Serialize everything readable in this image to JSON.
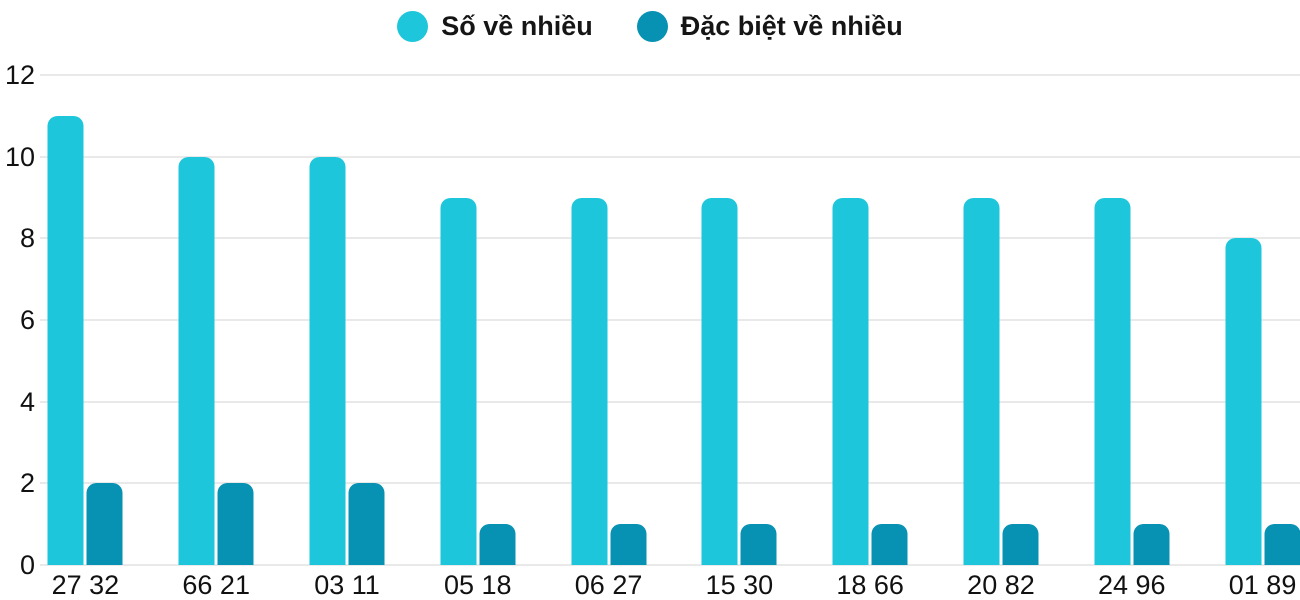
{
  "chart_data": {
    "type": "bar",
    "title": "",
    "categories": [
      "27 32",
      "66 21",
      "03 11",
      "05 18",
      "06 27",
      "15 30",
      "18 66",
      "20 82",
      "24 96",
      "01 89"
    ],
    "series": [
      {
        "name": "Số về nhiều",
        "color": "#1ec6dc",
        "values": [
          11,
          10,
          10,
          9,
          9,
          9,
          9,
          9,
          9,
          8
        ]
      },
      {
        "name": "Đặc biệt về nhiều",
        "color": "#0791b3",
        "values": [
          2,
          2,
          2,
          1,
          1,
          1,
          1,
          1,
          1,
          1
        ]
      }
    ],
    "ylim": [
      0,
      12
    ],
    "y_ticks": [
      0,
      2,
      4,
      6,
      8,
      10,
      12
    ],
    "grid": true,
    "legend_position": "top"
  },
  "colors": {
    "grid": "#e9e9e9",
    "text": "#111111",
    "background": "#ffffff"
  }
}
